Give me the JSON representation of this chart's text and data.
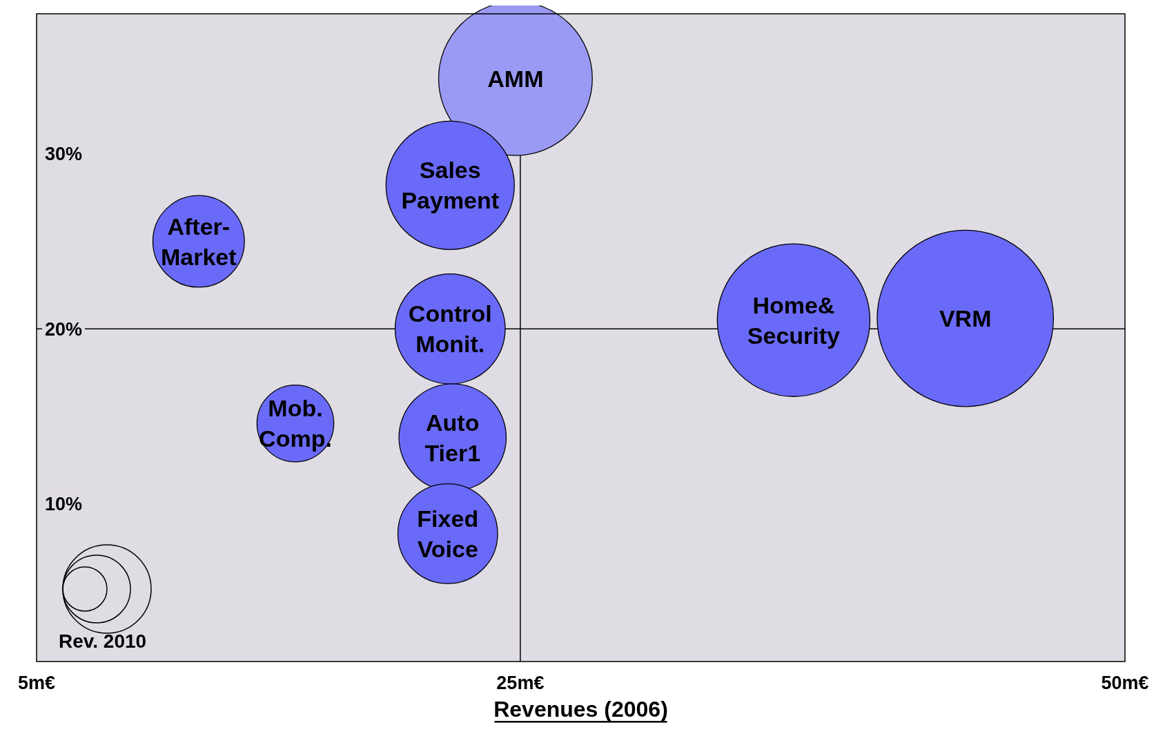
{
  "chart_data": {
    "type": "bubble",
    "series": [
      {
        "name": "AMM",
        "color": "#9a9af5",
        "x": [
          24.8
        ],
        "values": [
          34.3
        ],
        "sizes": [
          0.76
        ]
      },
      {
        "name": "Sales\nPayment",
        "color": "#6a6af8",
        "x": [
          22.1
        ],
        "values": [
          28.2
        ],
        "sizes": [
          0.53
        ]
      },
      {
        "name": "After-\nMarket",
        "color": "#6a6af8",
        "x": [
          11.7
        ],
        "values": [
          25.0
        ],
        "sizes": [
          0.27
        ]
      },
      {
        "name": "Control\nMonit.",
        "color": "#6a6af8",
        "x": [
          22.1
        ],
        "values": [
          20.0
        ],
        "sizes": [
          0.39
        ]
      },
      {
        "name": "Home&\nSecurity",
        "color": "#6a6af8",
        "x": [
          36.3
        ],
        "values": [
          20.5
        ],
        "sizes": [
          0.75
        ]
      },
      {
        "name": "VRM",
        "color": "#6a6af8",
        "x": [
          43.4
        ],
        "values": [
          20.6
        ],
        "sizes": [
          1
        ]
      },
      {
        "name": "Mob.\nComp.",
        "color": "#6a6af8",
        "x": [
          15.7
        ],
        "values": [
          14.6
        ],
        "sizes": [
          0.19
        ]
      },
      {
        "name": "Auto\nTier1",
        "color": "#6a6af8",
        "x": [
          22.2
        ],
        "values": [
          13.8
        ],
        "sizes": [
          0.37
        ]
      },
      {
        "name": "Fixed\nVoice",
        "color": "#6a6af8",
        "x": [
          22.0
        ],
        "values": [
          8.3
        ],
        "sizes": [
          0.32
        ]
      }
    ],
    "xlim": [
      5,
      50
    ],
    "ylim": [
      1,
      38
    ],
    "xticks": [
      {
        "value": 5,
        "label": "5m€"
      },
      {
        "value": 25,
        "label": "25m€"
      },
      {
        "value": 50,
        "label": "50m€"
      }
    ],
    "yticks": [
      {
        "value": 10,
        "label": "10%"
      },
      {
        "value": 20,
        "label": "20%"
      },
      {
        "value": 30,
        "label": "30%"
      }
    ],
    "xlabel": "Revenues (2006)",
    "ref_lines": [
      {
        "axis": "x",
        "value": 25,
        "label": null,
        "color": "#000000"
      },
      {
        "axis": "y",
        "value": 20,
        "label": null,
        "color": "#000000"
      }
    ],
    "annotations": [
      "Rev. 2010"
    ],
    "grid": false
  }
}
